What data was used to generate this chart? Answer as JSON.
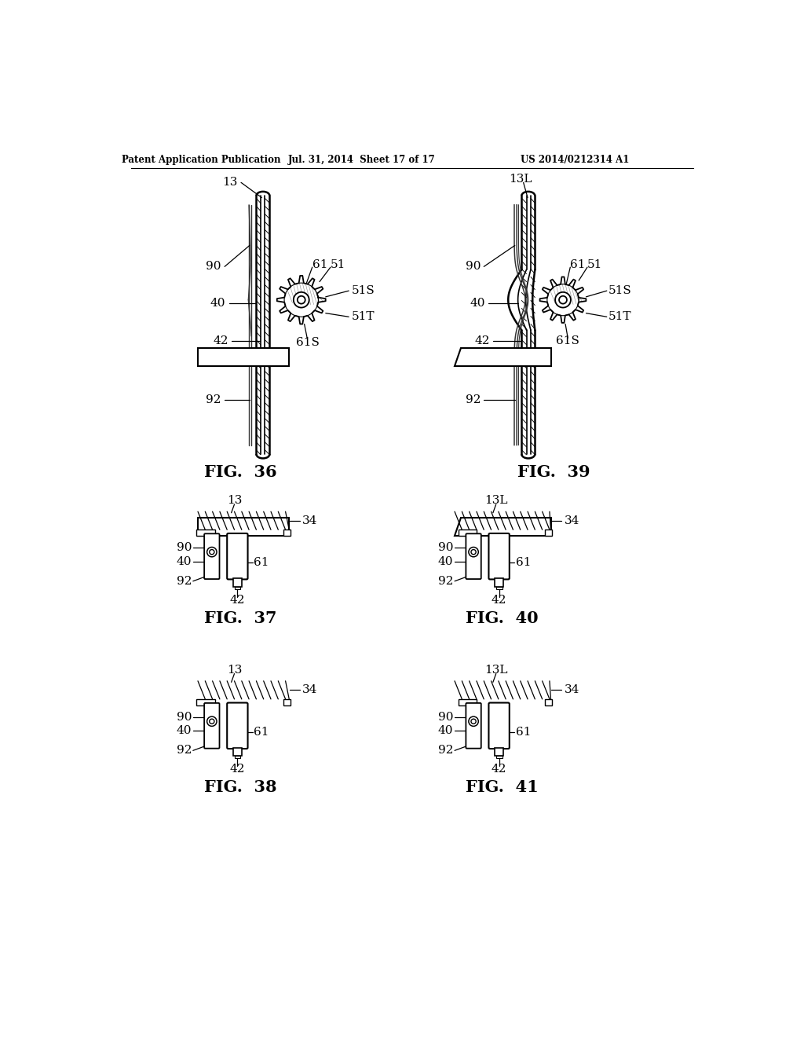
{
  "background_color": "#ffffff",
  "header_left": "Patent Application Publication",
  "header_mid": "Jul. 31, 2014  Sheet 17 of 17",
  "header_right": "US 2014/0212314 A1",
  "fig36_label": "FIG.  36",
  "fig37_label": "FIG.  37",
  "fig38_label": "FIG.  38",
  "fig39_label": "FIG.  39",
  "fig40_label": "FIG.  40",
  "fig41_label": "FIG.  41"
}
